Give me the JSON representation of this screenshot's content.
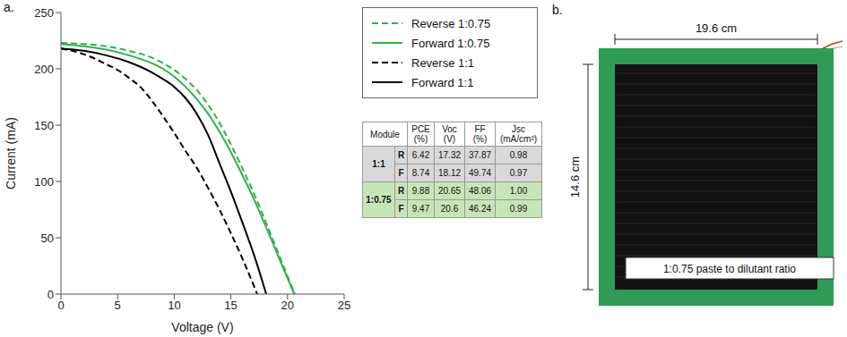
{
  "chart_data": {
    "type": "line",
    "panel_label": "a.",
    "x_label": "Voltage (V)",
    "y_label": "Current (mA)",
    "xlim": [
      0,
      25
    ],
    "xticks": [
      0,
      5,
      10,
      15,
      20,
      25
    ],
    "ylim": [
      0,
      250
    ],
    "yticks": [
      0,
      50,
      100,
      150,
      200,
      250
    ],
    "grid": false,
    "legend": "right",
    "series": [
      {
        "name": "Reverse 1:0.75",
        "color": "#2eb34b",
        "line_style": "dashed",
        "x": [
          0,
          2,
          4,
          6,
          8,
          9,
          10,
          11,
          12,
          13,
          14,
          15,
          16,
          17,
          18,
          19,
          20,
          20.65
        ],
        "values": [
          223,
          222,
          220,
          216,
          210,
          205,
          199,
          191,
          181,
          168,
          152,
          133,
          112,
          90,
          66,
          41,
          16,
          0
        ]
      },
      {
        "name": "Forward 1:0.75",
        "color": "#2eb34b",
        "line_style": "solid",
        "x": [
          0,
          2,
          4,
          6,
          8,
          9,
          10,
          11,
          12,
          13,
          14,
          15,
          16,
          17,
          18,
          19,
          20,
          20.6
        ],
        "values": [
          222,
          220,
          217,
          212,
          205,
          200,
          193,
          184,
          173,
          160,
          144,
          126,
          106,
          85,
          62,
          38,
          14,
          0
        ]
      },
      {
        "name": "Reverse 1:1",
        "color": "#000000",
        "line_style": "dashed",
        "x": [
          0,
          1,
          2,
          3,
          4,
          5,
          6,
          7,
          8,
          9,
          10,
          11,
          12,
          13,
          14,
          15,
          16,
          17,
          17.32
        ],
        "values": [
          218,
          216,
          213,
          209,
          204,
          199,
          192,
          184,
          172,
          158,
          143,
          127,
          112,
          94,
          75,
          54,
          32,
          8,
          0
        ]
      },
      {
        "name": "Forward 1:1",
        "color": "#000000",
        "line_style": "solid",
        "x": [
          0,
          2,
          4,
          6,
          8,
          9,
          10,
          11,
          12,
          13,
          14,
          15,
          16,
          17,
          18,
          18.12
        ],
        "values": [
          218,
          216,
          212,
          206,
          197,
          191,
          184,
          174,
          160,
          141,
          116,
          91,
          64,
          36,
          4,
          0
        ]
      }
    ]
  },
  "table": {
    "columns": [
      "Module",
      "PCE (%)",
      "Voc (V)",
      "FF (%)",
      "Jsc (mA/cm²)"
    ],
    "groups": [
      {
        "module": "1:1",
        "color": "#d9d9d9",
        "rows": [
          {
            "scan": "R",
            "values": [
              "6.42",
              "17.32",
              "37.87",
              "0.98"
            ]
          },
          {
            "scan": "F",
            "values": [
              "8.74",
              "18.12",
              "49.74",
              "0.97"
            ]
          }
        ]
      },
      {
        "module": "1:0.75",
        "color": "#c6e6b8",
        "rows": [
          {
            "scan": "R",
            "values": [
              "9.88",
              "20.65",
              "48.06",
              "1.00"
            ]
          },
          {
            "scan": "F",
            "values": [
              "9.47",
              "20.6",
              "46.24",
              "0.99"
            ]
          }
        ]
      }
    ]
  },
  "photo": {
    "panel_label": "b.",
    "width_label": "19.6 cm",
    "height_label": "14.6 cm",
    "caption": "1:0.75 paste to dilutant ratio"
  }
}
